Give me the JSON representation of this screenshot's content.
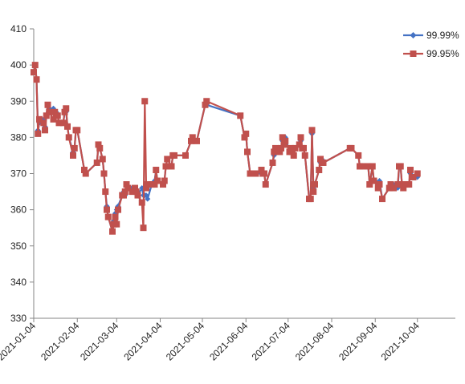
{
  "chart_data": {
    "type": "line",
    "xlim": [
      "2021-01-04",
      "2021-10-31"
    ],
    "ylim": [
      330,
      410
    ],
    "yticks": [
      330,
      340,
      350,
      360,
      370,
      380,
      390,
      400,
      410
    ],
    "xticks": [
      "2021-01-04",
      "2021-02-04",
      "2021-03-04",
      "2021-04-04",
      "2021-05-04",
      "2021-06-04",
      "2021-07-04",
      "2021-08-04",
      "2021-09-04",
      "2021-10-04"
    ],
    "grid": false,
    "legend_position": "top-right",
    "series": [
      {
        "name": "99.99%",
        "color": "#4472C4",
        "marker": "diamond",
        "points": [
          [
            "2021-01-04",
            398
          ],
          [
            "2021-01-05",
            400
          ],
          [
            "2021-01-06",
            396
          ],
          [
            "2021-01-07",
            382
          ],
          [
            "2021-01-08",
            384
          ],
          [
            "2021-01-11",
            385
          ],
          [
            "2021-01-12",
            383
          ],
          [
            "2021-01-13",
            386
          ],
          [
            "2021-01-14",
            389
          ],
          [
            "2021-01-15",
            388
          ],
          [
            "2021-01-18",
            388
          ],
          [
            "2021-01-19",
            387
          ],
          [
            "2021-01-20",
            387
          ],
          [
            "2021-01-21",
            386
          ],
          [
            "2021-01-22",
            384
          ],
          [
            "2021-01-25",
            384
          ],
          [
            "2021-01-26",
            387
          ],
          [
            "2021-01-27",
            387
          ],
          [
            "2021-01-28",
            383
          ],
          [
            "2021-01-29",
            380
          ],
          [
            "2021-02-01",
            376
          ],
          [
            "2021-02-02",
            377
          ],
          [
            "2021-02-03",
            382
          ],
          [
            "2021-02-04",
            382
          ],
          [
            "2021-02-09",
            371
          ],
          [
            "2021-02-10",
            370
          ],
          [
            "2021-02-18",
            373
          ],
          [
            "2021-02-19",
            378
          ],
          [
            "2021-02-20",
            377
          ],
          [
            "2021-02-22",
            374
          ],
          [
            "2021-02-23",
            370
          ],
          [
            "2021-02-24",
            365
          ],
          [
            "2021-02-25",
            361
          ],
          [
            "2021-02-26",
            358
          ],
          [
            "2021-03-01",
            354
          ],
          [
            "2021-03-02",
            357
          ],
          [
            "2021-03-03",
            359
          ],
          [
            "2021-03-04",
            360
          ],
          [
            "2021-03-05",
            361
          ],
          [
            "2021-03-08",
            364
          ],
          [
            "2021-03-09",
            365
          ],
          [
            "2021-03-10",
            364
          ],
          [
            "2021-03-11",
            367
          ],
          [
            "2021-03-12",
            366
          ],
          [
            "2021-03-15",
            366
          ],
          [
            "2021-03-16",
            365
          ],
          [
            "2021-03-17",
            366
          ],
          [
            "2021-03-18",
            365
          ],
          [
            "2021-03-19",
            364
          ],
          [
            "2021-03-22",
            366
          ],
          [
            "2021-03-23",
            364
          ],
          [
            "2021-03-24",
            364
          ],
          [
            "2021-03-25",
            364
          ],
          [
            "2021-03-26",
            363
          ],
          [
            "2021-03-29",
            367
          ],
          [
            "2021-03-30",
            367
          ],
          [
            "2021-03-31",
            368
          ],
          [
            "2021-04-01",
            371
          ],
          [
            "2021-04-02",
            368
          ],
          [
            "2021-04-06",
            367
          ],
          [
            "2021-04-07",
            368
          ],
          [
            "2021-04-08",
            372
          ],
          [
            "2021-04-09",
            374
          ],
          [
            "2021-04-12",
            372
          ],
          [
            "2021-04-13",
            375
          ],
          [
            "2021-04-14",
            375
          ],
          [
            "2021-04-22",
            375
          ],
          [
            "2021-04-26",
            379
          ],
          [
            "2021-04-27",
            380
          ],
          [
            "2021-04-30",
            379
          ],
          [
            "2021-05-06",
            389
          ],
          [
            "2021-05-07",
            389
          ],
          [
            "2021-05-31",
            386
          ],
          [
            "2021-06-03",
            380
          ],
          [
            "2021-06-04",
            381
          ],
          [
            "2021-06-05",
            376
          ],
          [
            "2021-06-07",
            370
          ],
          [
            "2021-06-08",
            370
          ],
          [
            "2021-06-10",
            370
          ],
          [
            "2021-06-11",
            370
          ],
          [
            "2021-06-15",
            370
          ],
          [
            "2021-06-16",
            370
          ],
          [
            "2021-06-17",
            370
          ],
          [
            "2021-06-18",
            367
          ],
          [
            "2021-06-23",
            373
          ],
          [
            "2021-06-24",
            375
          ],
          [
            "2021-06-25",
            376
          ],
          [
            "2021-06-28",
            377
          ],
          [
            "2021-06-29",
            377
          ],
          [
            "2021-06-30",
            379
          ],
          [
            "2021-07-01",
            379
          ],
          [
            "2021-07-02",
            380
          ],
          [
            "2021-07-05",
            376
          ],
          [
            "2021-07-06",
            377
          ],
          [
            "2021-07-07",
            376
          ],
          [
            "2021-07-08",
            375
          ],
          [
            "2021-07-09",
            377
          ],
          [
            "2021-07-12",
            378
          ],
          [
            "2021-07-13",
            379
          ],
          [
            "2021-07-14",
            377
          ],
          [
            "2021-07-15",
            377
          ],
          [
            "2021-07-16",
            375
          ],
          [
            "2021-07-19",
            363
          ],
          [
            "2021-07-20",
            363
          ],
          [
            "2021-07-21",
            381
          ],
          [
            "2021-07-22",
            366
          ],
          [
            "2021-07-23",
            367
          ],
          [
            "2021-07-26",
            371
          ],
          [
            "2021-07-27",
            373
          ],
          [
            "2021-07-28",
            374
          ],
          [
            "2021-07-29",
            373
          ],
          [
            "2021-08-17",
            377
          ],
          [
            "2021-08-18",
            377
          ],
          [
            "2021-08-23",
            375
          ],
          [
            "2021-08-24",
            372
          ],
          [
            "2021-08-26",
            372
          ],
          [
            "2021-08-30",
            372
          ],
          [
            "2021-08-31",
            367
          ],
          [
            "2021-09-02",
            372
          ],
          [
            "2021-09-03",
            368
          ],
          [
            "2021-09-06",
            367
          ],
          [
            "2021-09-07",
            368
          ],
          [
            "2021-09-09",
            363
          ],
          [
            "2021-09-14",
            366
          ],
          [
            "2021-09-15",
            367
          ],
          [
            "2021-09-17",
            367
          ],
          [
            "2021-09-20",
            366
          ],
          [
            "2021-09-21",
            372
          ],
          [
            "2021-09-22",
            372
          ],
          [
            "2021-09-23",
            367
          ],
          [
            "2021-09-24",
            366
          ],
          [
            "2021-09-27",
            367
          ],
          [
            "2021-09-28",
            367
          ],
          [
            "2021-09-29",
            370
          ],
          [
            "2021-09-30",
            369
          ],
          [
            "2021-10-01",
            369
          ],
          [
            "2021-10-04",
            369
          ]
        ]
      },
      {
        "name": "99.95%",
        "color": "#C0504D",
        "marker": "square",
        "points": [
          [
            "2021-01-04",
            398
          ],
          [
            "2021-01-05",
            400
          ],
          [
            "2021-01-06",
            396
          ],
          [
            "2021-01-07",
            381
          ],
          [
            "2021-01-08",
            385
          ],
          [
            "2021-01-11",
            384
          ],
          [
            "2021-01-12",
            382
          ],
          [
            "2021-01-13",
            386
          ],
          [
            "2021-01-14",
            389
          ],
          [
            "2021-01-15",
            387
          ],
          [
            "2021-01-18",
            385
          ],
          [
            "2021-01-19",
            387
          ],
          [
            "2021-01-20",
            386
          ],
          [
            "2021-01-21",
            386
          ],
          [
            "2021-01-22",
            384
          ],
          [
            "2021-01-25",
            384
          ],
          [
            "2021-01-26",
            387
          ],
          [
            "2021-01-27",
            388
          ],
          [
            "2021-01-28",
            383
          ],
          [
            "2021-01-29",
            380
          ],
          [
            "2021-02-01",
            375
          ],
          [
            "2021-02-02",
            377
          ],
          [
            "2021-02-03",
            382
          ],
          [
            "2021-02-04",
            382
          ],
          [
            "2021-02-09",
            371
          ],
          [
            "2021-02-10",
            370
          ],
          [
            "2021-02-18",
            373
          ],
          [
            "2021-02-19",
            378
          ],
          [
            "2021-02-20",
            377
          ],
          [
            "2021-02-22",
            374
          ],
          [
            "2021-02-23",
            370
          ],
          [
            "2021-02-24",
            365
          ],
          [
            "2021-02-25",
            360
          ],
          [
            "2021-02-26",
            358
          ],
          [
            "2021-03-01",
            354
          ],
          [
            "2021-03-02",
            356
          ],
          [
            "2021-03-03",
            358
          ],
          [
            "2021-03-04",
            356
          ],
          [
            "2021-03-05",
            360
          ],
          [
            "2021-03-08",
            364
          ],
          [
            "2021-03-09",
            364
          ],
          [
            "2021-03-10",
            365
          ],
          [
            "2021-03-11",
            367
          ],
          [
            "2021-03-12",
            366
          ],
          [
            "2021-03-15",
            365
          ],
          [
            "2021-03-16",
            365
          ],
          [
            "2021-03-17",
            366
          ],
          [
            "2021-03-18",
            365
          ],
          [
            "2021-03-19",
            364
          ],
          [
            "2021-03-22",
            362
          ],
          [
            "2021-03-23",
            355
          ],
          [
            "2021-03-24",
            390
          ],
          [
            "2021-03-25",
            366
          ],
          [
            "2021-03-26",
            367
          ],
          [
            "2021-03-29",
            367
          ],
          [
            "2021-03-30",
            367
          ],
          [
            "2021-03-31",
            367
          ],
          [
            "2021-04-01",
            371
          ],
          [
            "2021-04-02",
            368
          ],
          [
            "2021-04-06",
            367
          ],
          [
            "2021-04-07",
            368
          ],
          [
            "2021-04-08",
            372
          ],
          [
            "2021-04-09",
            374
          ],
          [
            "2021-04-12",
            372
          ],
          [
            "2021-04-13",
            375
          ],
          [
            "2021-04-14",
            375
          ],
          [
            "2021-04-22",
            375
          ],
          [
            "2021-04-26",
            379
          ],
          [
            "2021-04-27",
            380
          ],
          [
            "2021-04-30",
            379
          ],
          [
            "2021-05-06",
            389
          ],
          [
            "2021-05-07",
            390
          ],
          [
            "2021-05-31",
            386
          ],
          [
            "2021-06-03",
            380
          ],
          [
            "2021-06-04",
            381
          ],
          [
            "2021-06-05",
            376
          ],
          [
            "2021-06-07",
            370
          ],
          [
            "2021-06-08",
            370
          ],
          [
            "2021-06-10",
            370
          ],
          [
            "2021-06-11",
            370
          ],
          [
            "2021-06-15",
            371
          ],
          [
            "2021-06-16",
            370
          ],
          [
            "2021-06-17",
            370
          ],
          [
            "2021-06-18",
            367
          ],
          [
            "2021-06-23",
            373
          ],
          [
            "2021-06-24",
            376
          ],
          [
            "2021-06-25",
            377
          ],
          [
            "2021-06-28",
            376
          ],
          [
            "2021-06-29",
            377
          ],
          [
            "2021-06-30",
            380
          ],
          [
            "2021-07-01",
            378
          ],
          [
            "2021-07-02",
            379
          ],
          [
            "2021-07-05",
            376
          ],
          [
            "2021-07-06",
            377
          ],
          [
            "2021-07-07",
            376
          ],
          [
            "2021-07-08",
            375
          ],
          [
            "2021-07-09",
            377
          ],
          [
            "2021-07-12",
            378
          ],
          [
            "2021-07-13",
            380
          ],
          [
            "2021-07-14",
            377
          ],
          [
            "2021-07-15",
            377
          ],
          [
            "2021-07-16",
            375
          ],
          [
            "2021-07-19",
            363
          ],
          [
            "2021-07-20",
            363
          ],
          [
            "2021-07-21",
            382
          ],
          [
            "2021-07-22",
            365
          ],
          [
            "2021-07-23",
            367
          ],
          [
            "2021-07-26",
            371
          ],
          [
            "2021-07-27",
            374
          ],
          [
            "2021-07-28",
            373
          ],
          [
            "2021-07-29",
            373
          ],
          [
            "2021-08-17",
            377
          ],
          [
            "2021-08-18",
            377
          ],
          [
            "2021-08-23",
            375
          ],
          [
            "2021-08-24",
            372
          ],
          [
            "2021-08-26",
            372
          ],
          [
            "2021-08-30",
            372
          ],
          [
            "2021-08-31",
            367
          ],
          [
            "2021-09-02",
            372
          ],
          [
            "2021-09-03",
            368
          ],
          [
            "2021-09-06",
            366
          ],
          [
            "2021-09-07",
            367
          ],
          [
            "2021-09-09",
            363
          ],
          [
            "2021-09-14",
            366
          ],
          [
            "2021-09-15",
            367
          ],
          [
            "2021-09-17",
            366
          ],
          [
            "2021-09-20",
            367
          ],
          [
            "2021-09-21",
            372
          ],
          [
            "2021-09-22",
            372
          ],
          [
            "2021-09-23",
            367
          ],
          [
            "2021-09-24",
            366
          ],
          [
            "2021-09-27",
            367
          ],
          [
            "2021-09-28",
            367
          ],
          [
            "2021-09-29",
            371
          ],
          [
            "2021-09-30",
            369
          ],
          [
            "2021-10-01",
            369
          ],
          [
            "2021-10-04",
            370
          ]
        ]
      }
    ]
  }
}
